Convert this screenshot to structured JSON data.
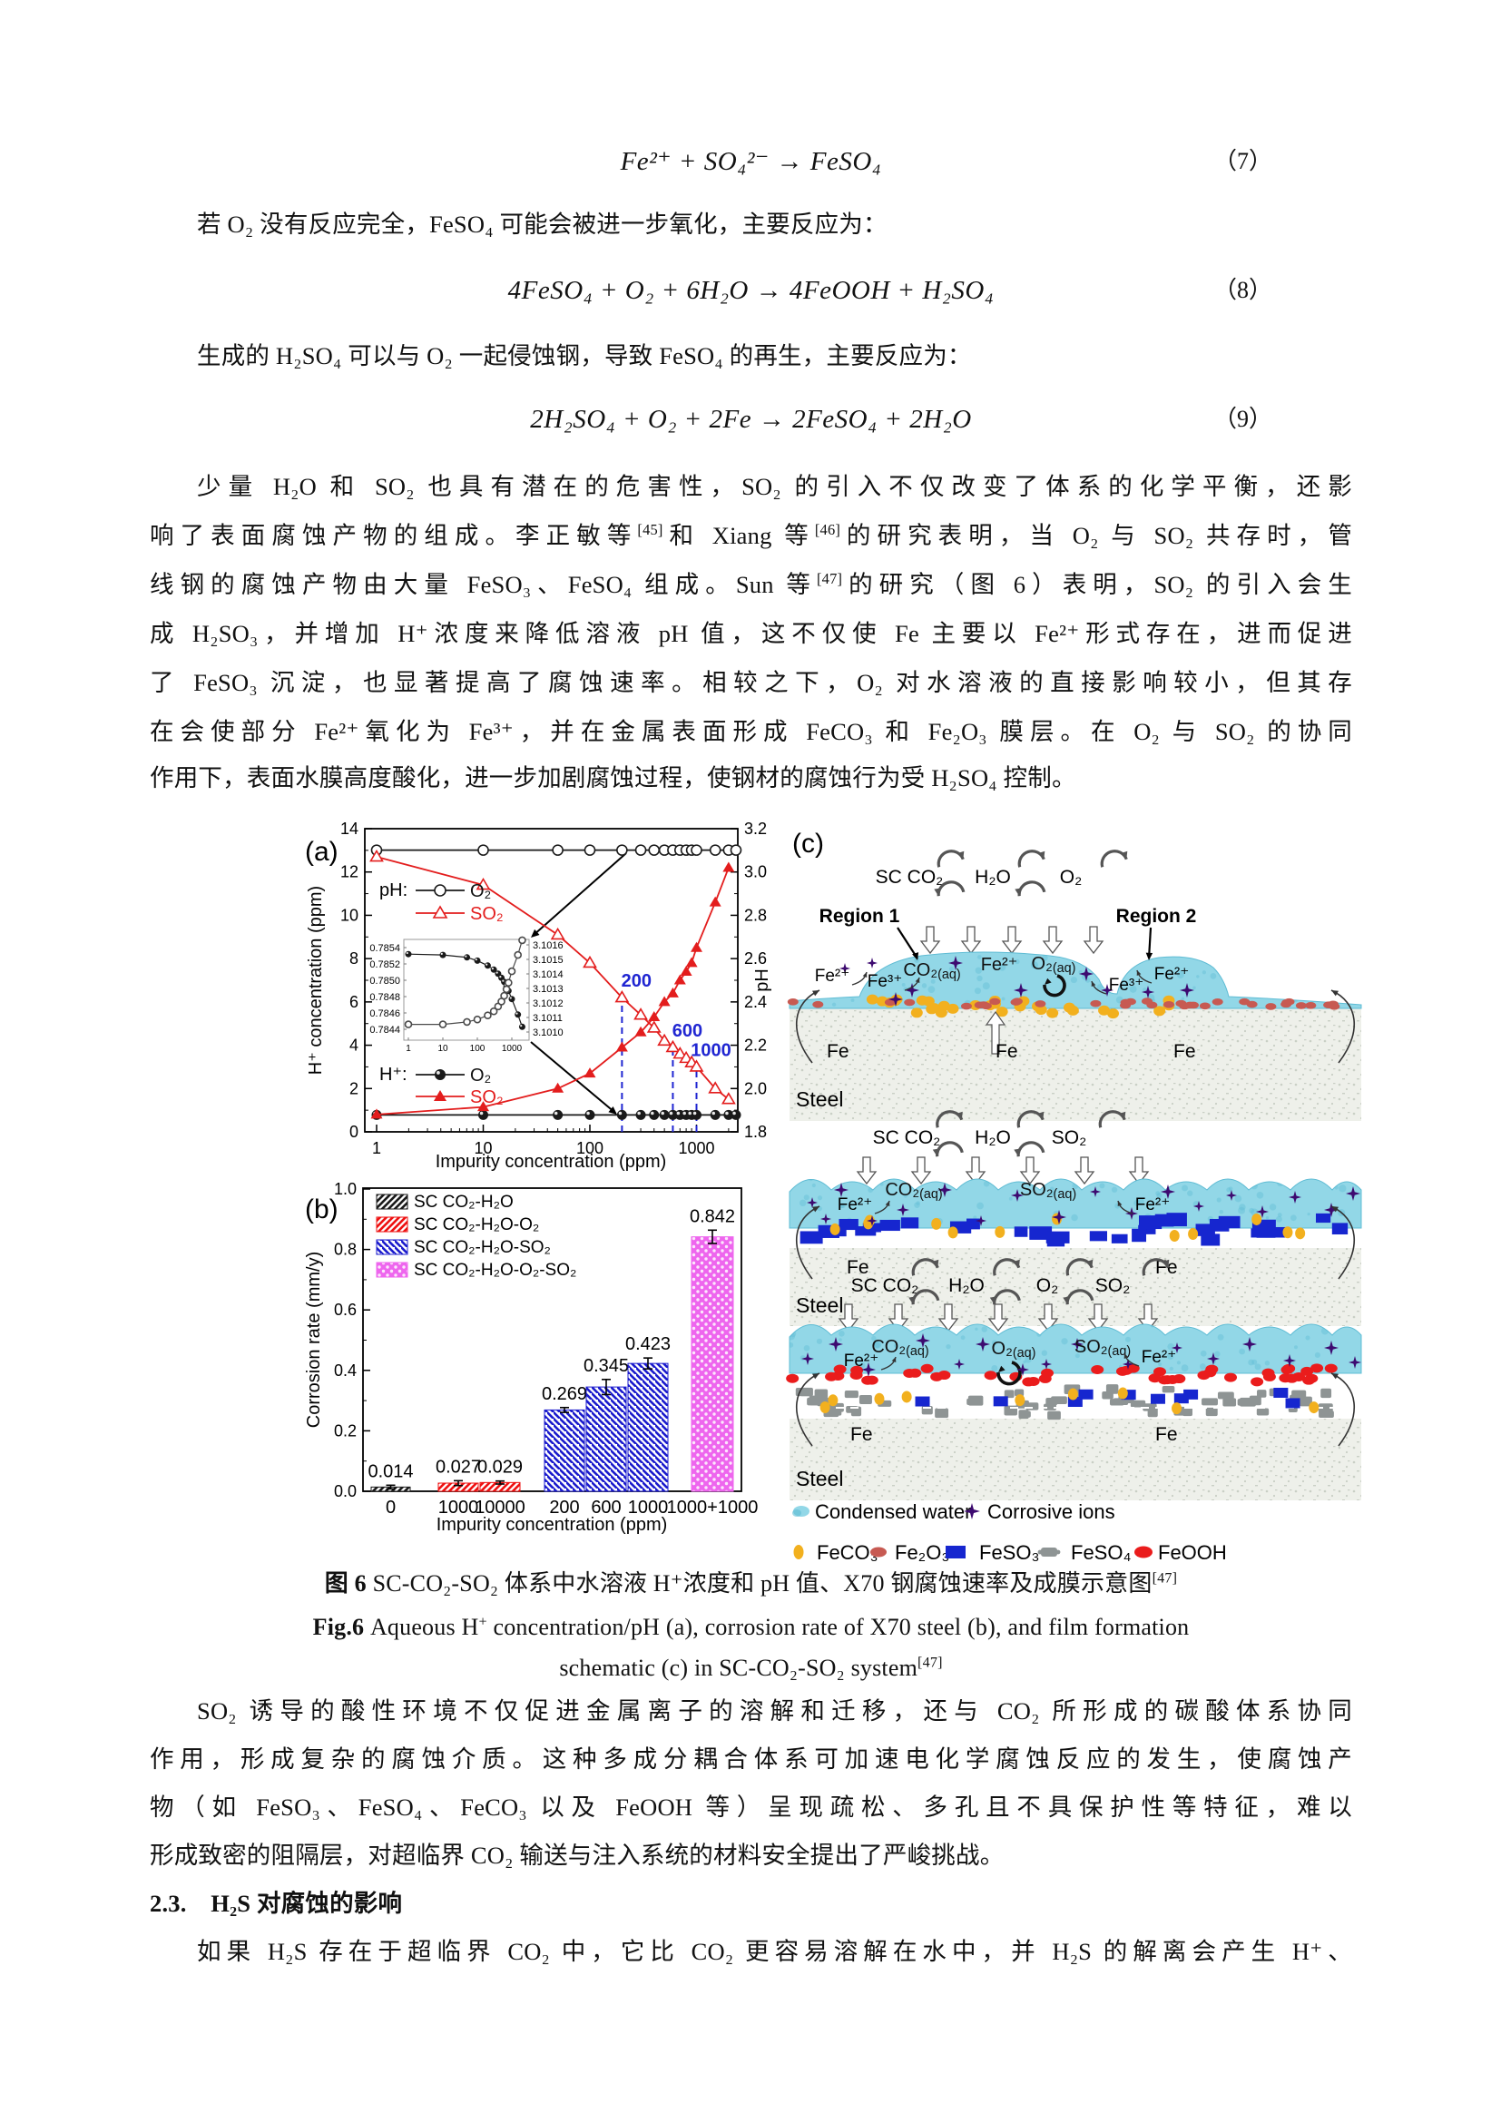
{
  "equations": [
    {
      "formula": "Fe²⁺ + SO₄²⁻ → FeSO₄",
      "number": "（7）"
    },
    {
      "formula": "4FeSO₄ + O₂ + 6H₂O → 4FeOOH + H₂SO₄",
      "number": "（8）"
    },
    {
      "formula": "2H₂SO₄ + O₂ + 2Fe → 2FeSO₄ + 2H₂O",
      "number": "（9）"
    }
  ],
  "paragraphs": {
    "p1": [
      "若 O₂ 没有反应完全，FeSO₄ 可能会被进一步氧化，主要反应为："
    ],
    "p2": [
      "生成的 H₂SO₄ 可以与 O₂ 一起侵蚀钢，导致 FeSO₄ 的再生，主要反应为："
    ],
    "p3": [
      [
        "少量 H₂O 和 SO₂ 也具有潜在的危害性，SO₂ 的引入不仅改变了体系的化学平衡，还影"
      ],
      [
        "响了表面腐蚀产物的组成。李正敏等",
        {
          "sup": "[45]"
        },
        "和 Xiang 等",
        {
          "sup": "[46]"
        },
        "的研究表明，当 O₂ 与 SO₂ 共存时，管"
      ],
      [
        "线钢的腐蚀产物由大量 FeSO₃、FeSO₄ 组成。Sun 等",
        {
          "sup": "[47]"
        },
        "的研究（图 6）表明，SO₂ 的引入会生"
      ],
      [
        "成 H₂SO₃，并增加 H⁺浓度来降低溶液 pH 值，这不仅使 Fe 主要以 Fe²⁺形式存在，进而促进"
      ],
      [
        "了 FeSO₃ 沉淀，也显著提高了腐蚀速率。相较之下，O₂ 对水溶液的直接影响较小，但其存"
      ],
      [
        "在会使部分 Fe²⁺氧化为 Fe³⁺，并在金属表面形成 FeCO₃ 和 Fe₂O₃ 膜层。在 O₂ 与 SO₂ 的协同"
      ],
      [
        "作用下，表面水膜高度酸化，进一步加剧腐蚀过程，使钢材的腐蚀行为受 H₂SO₄ 控制。"
      ]
    ],
    "p4": [
      [
        "SO₂ 诱导的酸性环境不仅促进金属离子的溶解和迁移，还与 CO₂ 所形成的碳酸体系协同"
      ],
      [
        "作用，形成复杂的腐蚀介质。这种多成分耦合体系可加速电化学腐蚀反应的发生，使腐蚀产"
      ],
      [
        "物（如 FeSO₃、FeSO₄、FeCO₃ 以及 FeOOH 等）呈现疏松、多孔且不具保护性等特征，难以"
      ],
      [
        "形成致密的阻隔层，对超临界 CO₂ 输送与注入系统的材料安全提出了严峻挑战。"
      ]
    ],
    "p5": [
      "如果 H₂S 存在于超临界 CO₂ 中，它比 CO₂ 更容易溶解在水中，并 H₂S 的解离会产生 H⁺、"
    ]
  },
  "caption": [
    [
      {
        "b": "图 6 "
      },
      "SC-CO₂-SO₂ 体系中水溶液 H⁺浓度和 pH 值、X70 钢腐蚀速率及成膜示意图",
      {
        "sup": "[47]"
      }
    ],
    [
      {
        "b": "Fig.6 "
      },
      "Aqueous H",
      {
        "sup": "+"
      },
      " concentration/pH (a), corrosion rate of X70 steel (b), and film formation"
    ],
    [
      "schematic (c) in SC-CO₂-SO₂ system",
      {
        "sup": "[47]"
      }
    ]
  ],
  "heading": [
    "2.3.　H₂S 对腐蚀的影响"
  ],
  "chart_data": [
    {
      "type": "line",
      "panel": "(a)",
      "xlabel": "Impurity concentration (ppm)",
      "ylabel_left": "H⁺ concentration (ppm)",
      "ylabel_right": "pH",
      "xscale": "log",
      "xlim": [
        0.78,
        2400
      ],
      "ylim_left": [
        0,
        14
      ],
      "ylim_right": [
        1.8,
        3.2
      ],
      "xticks": [
        1,
        10,
        100,
        1000
      ],
      "yticks_left": [
        0,
        2,
        4,
        6,
        8,
        10,
        12,
        14
      ],
      "yticks_right": [
        "1.8",
        "2.0",
        "2.2",
        "2.4",
        "2.6",
        "2.8",
        "3.0",
        "3.2"
      ],
      "legend_top": {
        "title": "pH:",
        "items": [
          {
            "label": "O₂",
            "marker": "open-circle",
            "color": "#1a1a1a"
          },
          {
            "label": "SO₂",
            "marker": "open-triangle",
            "color": "#e31d1d"
          }
        ]
      },
      "legend_bottom": {
        "title": "H⁺:",
        "items": [
          {
            "label": "O₂",
            "marker": "filled-circle",
            "color": "#1a1a1a"
          },
          {
            "label": "SO₂",
            "marker": "filled-triangle",
            "color": "#e31d1d"
          }
        ]
      },
      "x": [
        1,
        10,
        50,
        100,
        200,
        300,
        400,
        500,
        600,
        700,
        800,
        900,
        1000,
        1500,
        2000
      ],
      "series": [
        {
          "name": "pH O₂",
          "axis": "right",
          "marker": "open-circle",
          "color": "#1a1a1a",
          "values": [
            3.101,
            3.101,
            3.101,
            3.101,
            3.101,
            3.101,
            3.101,
            3.101,
            3.101,
            3.101,
            3.101,
            3.101,
            3.101,
            3.101,
            3.101
          ]
        },
        {
          "name": "pH SO₂",
          "axis": "right",
          "marker": "open-triangle",
          "color": "#e31d1d",
          "values": [
            3.07,
            2.94,
            2.71,
            2.58,
            2.42,
            2.34,
            2.28,
            2.22,
            2.19,
            2.16,
            2.14,
            2.12,
            2.1,
            2.0,
            1.95
          ]
        },
        {
          "name": "H⁺ O₂",
          "axis": "left",
          "marker": "filled-circle",
          "color": "#1a1a1a",
          "values": [
            0.78,
            0.78,
            0.78,
            0.78,
            0.78,
            0.78,
            0.78,
            0.78,
            0.78,
            0.78,
            0.78,
            0.78,
            0.78,
            0.78,
            0.78
          ]
        },
        {
          "name": "H⁺ SO₂",
          "axis": "left",
          "marker": "filled-triangle",
          "color": "#e31d1d",
          "values": [
            0.8,
            1.15,
            2.0,
            2.7,
            3.9,
            4.6,
            5.3,
            6.0,
            6.4,
            7.0,
            7.4,
            7.8,
            8.5,
            10.6,
            12.2
          ]
        }
      ],
      "annotations": [
        {
          "x": 200,
          "label": "200"
        },
        {
          "x": 600,
          "label": "600"
        },
        {
          "x": 1000,
          "label": "1000"
        }
      ],
      "annotation_color": "#2026d2",
      "inset": {
        "xticks": [
          1,
          10,
          100,
          1000
        ],
        "yticks_left": [
          "0.7854",
          "0.7852",
          "0.7850",
          "0.7848",
          "0.7846",
          "0.7844"
        ],
        "yticks_right": [
          "3.1016",
          "3.1015",
          "3.1014",
          "3.1013",
          "3.1012",
          "3.1011",
          "3.1010"
        ],
        "ylim": [
          0.78435,
          0.78555
        ],
        "x": [
          1,
          10,
          50,
          100,
          200,
          300,
          400,
          500,
          600,
          700,
          800,
          1000,
          1500,
          2000
        ],
        "series": [
          {
            "marker": "filled-circle",
            "color": "#1a1a1a",
            "values": [
              0.78532,
              0.78531,
              0.78528,
              0.78524,
              0.78518,
              0.78513,
              0.78508,
              0.78503,
              0.78498,
              0.78493,
              0.78487,
              0.78477,
              0.78458,
              0.78443
            ]
          },
          {
            "marker": "open-circle",
            "color": "#4a4a4a",
            "values": [
              0.78446,
              0.78446,
              0.78449,
              0.78452,
              0.78457,
              0.78462,
              0.78468,
              0.78474,
              0.78481,
              0.78489,
              0.78497,
              0.78511,
              0.78531,
              0.78549
            ]
          }
        ]
      }
    },
    {
      "type": "bar",
      "panel": "(b)",
      "xlabel": "Impurity concentration (ppm)",
      "ylabel": "Corrosion rate (mm/y)",
      "ylim": [
        0,
        1.0
      ],
      "yticks": [
        "0.0",
        "0.2",
        "0.4",
        "0.6",
        "0.8",
        "1.0"
      ],
      "series": [
        {
          "name": "SC CO₂-H₂O",
          "pattern": "hatch-fwd",
          "color": "#1a1a1a",
          "bars": [
            {
              "category": "0",
              "value": 0.014,
              "error": 0.006
            }
          ]
        },
        {
          "name": "SC CO₂-H₂O-O₂",
          "pattern": "hatch-fwd",
          "color": "#ee1111",
          "bars": [
            {
              "category": "1000",
              "value": 0.027,
              "error": 0.008
            },
            {
              "category": "10000",
              "value": 0.029,
              "error": 0.005
            }
          ]
        },
        {
          "name": "SC CO₂-H₂O-SO₂",
          "pattern": "hatch-bwd",
          "color": "#1c1ccd",
          "bars": [
            {
              "category": "200",
              "value": 0.269,
              "error": 0.008
            },
            {
              "category": "600",
              "value": 0.345,
              "error": 0.025
            },
            {
              "category": "1000",
              "value": 0.423,
              "error": 0.018
            }
          ]
        },
        {
          "name": "SC CO₂-H₂O-O₂-SO₂",
          "pattern": "dots",
          "color": "#ee66ee",
          "bars": [
            {
              "category": "1000+1000",
              "value": 0.842,
              "error": 0.022
            }
          ]
        }
      ]
    },
    {
      "type": "diagram",
      "panel": "(c)",
      "panels": [
        {
          "gases": [
            "SC CO₂",
            "H₂O",
            "O₂"
          ],
          "regions": [
            "Region 1",
            "Region 2"
          ],
          "aqueous": [
            "CO₂(aq)",
            "Fe²⁺",
            "O₂(aq)"
          ],
          "edge_ions": [
            "Fe²⁺",
            "Fe³⁺",
            "Fe³⁺",
            "Fe²⁺"
          ],
          "metal": "Fe",
          "substrate": "Steel",
          "film": [
            "FeCO₃",
            "Fe₂O₃"
          ]
        },
        {
          "gases": [
            "SC CO₂",
            "H₂O",
            "SO₂"
          ],
          "aqueous": [
            "CO₂(aq)",
            "SO₂(aq)"
          ],
          "edge_ions": [
            "Fe²⁺",
            "Fe²⁺"
          ],
          "metal": "Fe",
          "substrate": "Steel",
          "film": [
            "FeSO₃",
            "FeCO₃"
          ]
        },
        {
          "gases": [
            "SC CO₂",
            "H₂O",
            "O₂",
            "SO₂"
          ],
          "aqueous": [
            "CO₂(aq)",
            "O₂(aq)",
            "SO₂(aq)"
          ],
          "edge_ions": [
            "Fe²⁺",
            "Fe²⁺"
          ],
          "metal": "Fe",
          "substrate": "Steel",
          "film": [
            "FeOOH",
            "FeSO₄",
            "FeSO₃",
            "FeCO₃"
          ]
        }
      ],
      "legend": [
        {
          "icon": "condensed-water",
          "label": "Condensed water"
        },
        {
          "icon": "corrosive-ion",
          "label": "Corrosive ions"
        },
        {
          "icon": "feco3",
          "label": "FeCO₃"
        },
        {
          "icon": "fe2o3",
          "label": "Fe₂O₃"
        },
        {
          "icon": "feso3",
          "label": "FeSO₃"
        },
        {
          "icon": "feso4",
          "label": "FeSO₄"
        },
        {
          "icon": "feooh",
          "label": "FeOOH"
        }
      ],
      "colors": {
        "water": "#92d7e7",
        "water_dark": "#5fbcd4",
        "ion": "#3d0a70",
        "feco3": "#f2b01e",
        "fe2o3": "#c75a52",
        "feso3": "#1626cf",
        "feso4": "#8e9494",
        "feooh": "#ea1c1c",
        "steel": "#eef0ea",
        "steel_speck": "#c9cfc5"
      }
    }
  ]
}
